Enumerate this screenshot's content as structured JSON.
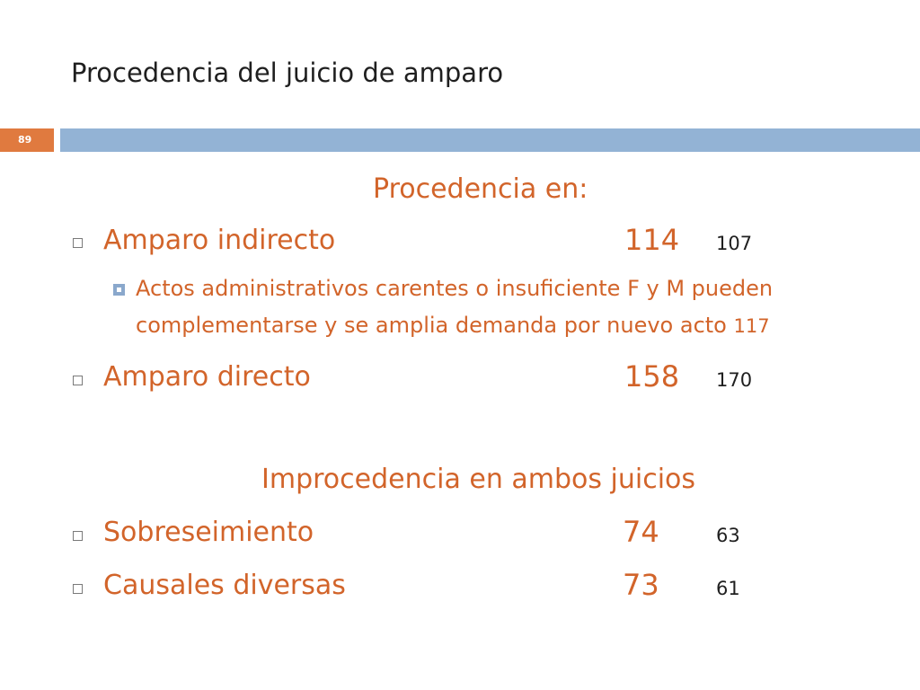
{
  "slide": {
    "title": "Procedencia del juicio de amparo",
    "page_number": "89"
  },
  "procedencia": {
    "heading": "Procedencia en:",
    "items": [
      {
        "label": "Amparo indirecto",
        "primary_number": "114",
        "secondary_number": "107",
        "sub_items": [
          {
            "line1": "Actos administrativos carentes o insuficiente F y M pueden",
            "line2": "complementarse y se amplia demanda por nuevo acto",
            "ref": "117"
          }
        ]
      },
      {
        "label": "Amparo directo",
        "primary_number": "158",
        "secondary_number": "170"
      }
    ]
  },
  "improcedencia": {
    "heading": "Improcedencia en ambos juicios",
    "items": [
      {
        "label": "Sobreseimiento",
        "primary_number": "74",
        "secondary_number": "63"
      },
      {
        "label": "Causales diversas",
        "primary_number": "73",
        "secondary_number": "61"
      }
    ]
  },
  "colors": {
    "accent_orange": "#d2642a",
    "badge_orange": "#e07a3f",
    "title_bar_blue": "#93b3d5",
    "text_dark": "#1f1f1f"
  }
}
